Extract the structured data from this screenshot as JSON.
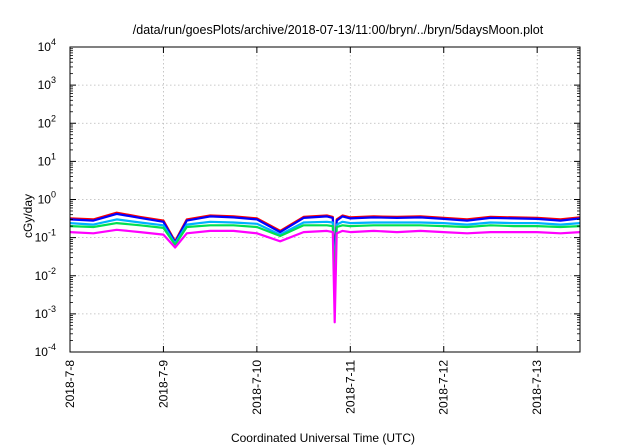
{
  "chart_data": {
    "type": "line",
    "title": "/data/run/goesPlots/archive/2018-07-13/11:00/bryn/../bryn/5daysMoon.plot",
    "xlabel": "Coordinated Universal Time (UTC)",
    "ylabel": "cGy/day",
    "yscale": "log",
    "ylim": [
      0.0001,
      10000
    ],
    "xlim": [
      "2018-07-08T00:00",
      "2018-07-13T11:00"
    ],
    "grid": true,
    "x_ticks": [
      {
        "date": "2018-07-08",
        "label": "2018-7-8"
      },
      {
        "date": "2018-07-09",
        "label": "2018-7-9"
      },
      {
        "date": "2018-07-10",
        "label": "2018-7-10"
      },
      {
        "date": "2018-07-11",
        "label": "2018-7-11"
      },
      {
        "date": "2018-07-12",
        "label": "2018-7-12"
      },
      {
        "date": "2018-07-13",
        "label": "2018-7-13"
      }
    ],
    "y_ticks": [
      {
        "value": 0.0001,
        "base": "10",
        "exp": "-4"
      },
      {
        "value": 0.001,
        "base": "10",
        "exp": "-3"
      },
      {
        "value": 0.01,
        "base": "10",
        "exp": "-2"
      },
      {
        "value": 0.1,
        "base": "10",
        "exp": "-1"
      },
      {
        "value": 1,
        "base": "10",
        "exp": "0"
      },
      {
        "value": 10,
        "base": "10",
        "exp": "1"
      },
      {
        "value": 100,
        "base": "10",
        "exp": "2"
      },
      {
        "value": 1000,
        "base": "10",
        "exp": "3"
      },
      {
        "value": 10000,
        "base": "10",
        "exp": "4"
      }
    ],
    "series": [
      {
        "color": "#ff0000",
        "x": [
          "2018-07-08T00:00",
          "2018-07-08T06:00",
          "2018-07-08T12:00",
          "2018-07-08T18:00",
          "2018-07-09T00:00",
          "2018-07-09T03:00",
          "2018-07-09T06:00",
          "2018-07-09T12:00",
          "2018-07-09T18:00",
          "2018-07-10T00:00",
          "2018-07-10T06:00",
          "2018-07-10T12:00",
          "2018-07-10T18:00",
          "2018-07-10T19:30",
          "2018-07-10T20:00",
          "2018-07-10T20:30",
          "2018-07-10T22:00",
          "2018-07-11T00:00",
          "2018-07-11T06:00",
          "2018-07-11T12:00",
          "2018-07-11T18:00",
          "2018-07-12T00:00",
          "2018-07-12T06:00",
          "2018-07-12T12:00",
          "2018-07-12T18:00",
          "2018-07-13T00:00",
          "2018-07-13T06:00",
          "2018-07-13T11:00"
        ],
        "y": [
          0.32,
          0.3,
          0.45,
          0.35,
          0.28,
          0.08,
          0.3,
          0.38,
          0.36,
          0.32,
          0.15,
          0.35,
          0.38,
          0.35,
          0.03,
          0.3,
          0.38,
          0.34,
          0.36,
          0.35,
          0.36,
          0.33,
          0.3,
          0.35,
          0.34,
          0.33,
          0.3,
          0.34
        ]
      },
      {
        "color": "#0000ff",
        "x": [
          "2018-07-08T00:00",
          "2018-07-08T06:00",
          "2018-07-08T12:00",
          "2018-07-08T18:00",
          "2018-07-09T00:00",
          "2018-07-09T03:00",
          "2018-07-09T06:00",
          "2018-07-09T12:00",
          "2018-07-09T18:00",
          "2018-07-10T00:00",
          "2018-07-10T06:00",
          "2018-07-10T12:00",
          "2018-07-10T18:00",
          "2018-07-10T19:30",
          "2018-07-10T20:00",
          "2018-07-10T20:30",
          "2018-07-10T22:00",
          "2018-07-11T00:00",
          "2018-07-11T06:00",
          "2018-07-11T12:00",
          "2018-07-11T18:00",
          "2018-07-12T00:00",
          "2018-07-12T06:00",
          "2018-07-12T12:00",
          "2018-07-12T18:00",
          "2018-07-13T00:00",
          "2018-07-13T06:00",
          "2018-07-13T11:00"
        ],
        "y": [
          0.3,
          0.28,
          0.42,
          0.33,
          0.26,
          0.075,
          0.28,
          0.36,
          0.34,
          0.3,
          0.14,
          0.33,
          0.36,
          0.33,
          0.02,
          0.28,
          0.36,
          0.32,
          0.34,
          0.33,
          0.34,
          0.31,
          0.28,
          0.33,
          0.32,
          0.31,
          0.28,
          0.32
        ]
      },
      {
        "color": "#00b0ff",
        "x": [
          "2018-07-08T00:00",
          "2018-07-08T06:00",
          "2018-07-08T12:00",
          "2018-07-08T18:00",
          "2018-07-09T00:00",
          "2018-07-09T03:00",
          "2018-07-09T06:00",
          "2018-07-09T12:00",
          "2018-07-09T18:00",
          "2018-07-10T00:00",
          "2018-07-10T06:00",
          "2018-07-10T12:00",
          "2018-07-10T18:00",
          "2018-07-10T19:30",
          "2018-07-10T20:00",
          "2018-07-10T20:30",
          "2018-07-10T22:00",
          "2018-07-11T00:00",
          "2018-07-11T06:00",
          "2018-07-11T12:00",
          "2018-07-11T18:00",
          "2018-07-12T00:00",
          "2018-07-12T06:00",
          "2018-07-12T12:00",
          "2018-07-12T18:00",
          "2018-07-13T00:00",
          "2018-07-13T06:00",
          "2018-07-13T11:00"
        ],
        "y": [
          0.24,
          0.22,
          0.3,
          0.25,
          0.21,
          0.07,
          0.22,
          0.26,
          0.25,
          0.23,
          0.12,
          0.25,
          0.26,
          0.25,
          0.01,
          0.22,
          0.26,
          0.24,
          0.25,
          0.25,
          0.25,
          0.24,
          0.22,
          0.25,
          0.24,
          0.24,
          0.22,
          0.24
        ]
      },
      {
        "color": "#00e050",
        "x": [
          "2018-07-08T00:00",
          "2018-07-08T06:00",
          "2018-07-08T12:00",
          "2018-07-08T18:00",
          "2018-07-09T00:00",
          "2018-07-09T03:00",
          "2018-07-09T06:00",
          "2018-07-09T12:00",
          "2018-07-09T18:00",
          "2018-07-10T00:00",
          "2018-07-10T06:00",
          "2018-07-10T12:00",
          "2018-07-10T18:00",
          "2018-07-10T19:30",
          "2018-07-10T20:00",
          "2018-07-10T20:30",
          "2018-07-10T22:00",
          "2018-07-11T00:00",
          "2018-07-11T06:00",
          "2018-07-11T12:00",
          "2018-07-11T18:00",
          "2018-07-12T00:00",
          "2018-07-12T06:00",
          "2018-07-12T12:00",
          "2018-07-12T18:00",
          "2018-07-13T00:00",
          "2018-07-13T06:00",
          "2018-07-13T11:00"
        ],
        "y": [
          0.2,
          0.19,
          0.24,
          0.21,
          0.18,
          0.065,
          0.19,
          0.21,
          0.21,
          0.19,
          0.11,
          0.21,
          0.21,
          0.2,
          0.005,
          0.19,
          0.21,
          0.2,
          0.21,
          0.21,
          0.21,
          0.2,
          0.19,
          0.21,
          0.2,
          0.2,
          0.19,
          0.2
        ]
      },
      {
        "color": "#ff00ff",
        "x": [
          "2018-07-08T00:00",
          "2018-07-08T06:00",
          "2018-07-08T12:00",
          "2018-07-08T18:00",
          "2018-07-09T00:00",
          "2018-07-09T03:00",
          "2018-07-09T06:00",
          "2018-07-09T12:00",
          "2018-07-09T18:00",
          "2018-07-10T00:00",
          "2018-07-10T06:00",
          "2018-07-10T12:00",
          "2018-07-10T18:00",
          "2018-07-10T19:30",
          "2018-07-10T20:00",
          "2018-07-10T20:30",
          "2018-07-10T22:00",
          "2018-07-11T00:00",
          "2018-07-11T06:00",
          "2018-07-11T12:00",
          "2018-07-11T18:00",
          "2018-07-12T00:00",
          "2018-07-12T06:00",
          "2018-07-12T12:00",
          "2018-07-12T18:00",
          "2018-07-13T00:00",
          "2018-07-13T06:00",
          "2018-07-13T11:00"
        ],
        "y": [
          0.14,
          0.13,
          0.16,
          0.14,
          0.12,
          0.055,
          0.13,
          0.15,
          0.15,
          0.13,
          0.08,
          0.14,
          0.15,
          0.14,
          0.0006,
          0.13,
          0.15,
          0.14,
          0.15,
          0.14,
          0.15,
          0.14,
          0.13,
          0.14,
          0.14,
          0.14,
          0.13,
          0.14
        ]
      }
    ]
  }
}
